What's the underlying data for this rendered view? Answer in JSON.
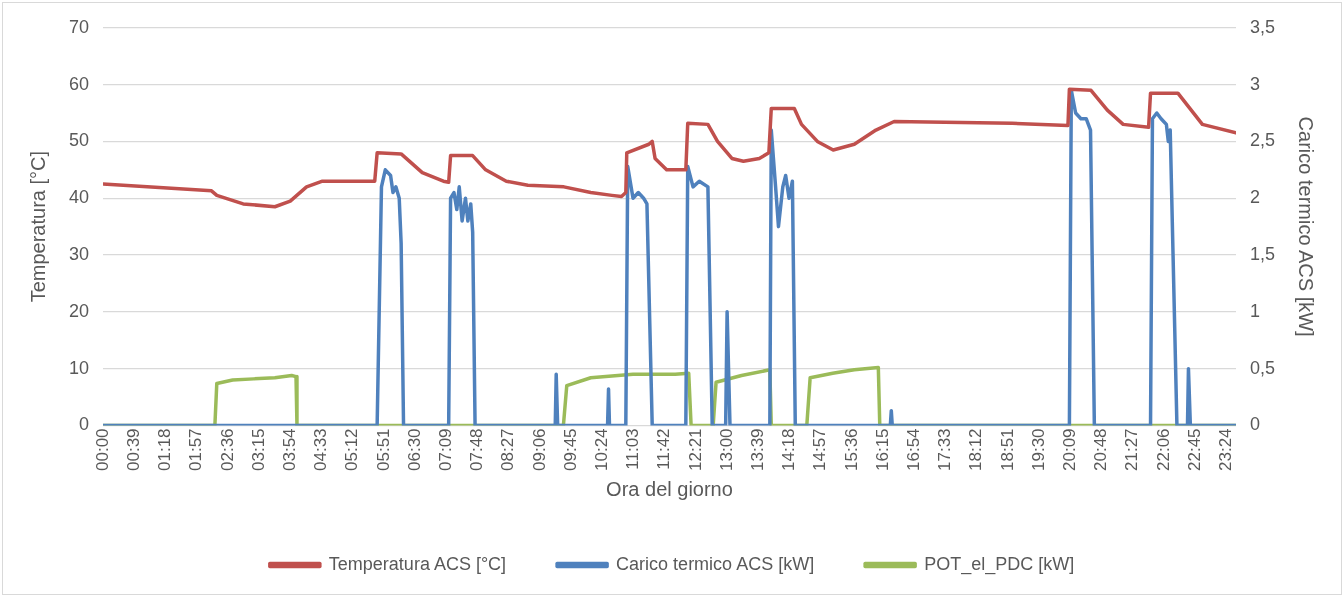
{
  "chart_data": {
    "type": "line",
    "xlabel": "Ora del giorno",
    "ylabel": "Temperatura [°C]",
    "y2label": "Carico termico ACS [kW]",
    "xlim": [
      0,
      23.6
    ],
    "xticks": [
      {
        "value": 0,
        "label": "00:00"
      },
      {
        "value": 0.65,
        "label": "00:39"
      },
      {
        "value": 1.3,
        "label": "01:18"
      },
      {
        "value": 1.95,
        "label": "01:57"
      },
      {
        "value": 2.6,
        "label": "02:36"
      },
      {
        "value": 3.25,
        "label": "03:15"
      },
      {
        "value": 3.9,
        "label": "03:54"
      },
      {
        "value": 4.55,
        "label": "04:33"
      },
      {
        "value": 5.2,
        "label": "05:12"
      },
      {
        "value": 5.85,
        "label": "05:51"
      },
      {
        "value": 6.5,
        "label": "06:30"
      },
      {
        "value": 7.15,
        "label": "07:09"
      },
      {
        "value": 7.8,
        "label": "07:48"
      },
      {
        "value": 8.45,
        "label": "08:27"
      },
      {
        "value": 9.1,
        "label": "09:06"
      },
      {
        "value": 9.75,
        "label": "09:45"
      },
      {
        "value": 10.4,
        "label": "10:24"
      },
      {
        "value": 11.05,
        "label": "11:03"
      },
      {
        "value": 11.7,
        "label": "11:42"
      },
      {
        "value": 12.35,
        "label": "12:21"
      },
      {
        "value": 13,
        "label": "13:00"
      },
      {
        "value": 13.65,
        "label": "13:39"
      },
      {
        "value": 14.3,
        "label": "14:18"
      },
      {
        "value": 14.95,
        "label": "14:57"
      },
      {
        "value": 15.6,
        "label": "15:36"
      },
      {
        "value": 16.25,
        "label": "16:15"
      },
      {
        "value": 16.9,
        "label": "16:54"
      },
      {
        "value": 17.55,
        "label": "17:33"
      },
      {
        "value": 18.2,
        "label": "18:12"
      },
      {
        "value": 18.85,
        "label": "18:51"
      },
      {
        "value": 19.5,
        "label": "19:30"
      },
      {
        "value": 20.15,
        "label": "20:09"
      },
      {
        "value": 20.8,
        "label": "20:48"
      },
      {
        "value": 21.45,
        "label": "21:27"
      },
      {
        "value": 22.1,
        "label": "22:06"
      },
      {
        "value": 22.75,
        "label": "22:45"
      },
      {
        "value": 23.4,
        "label": "23:24"
      }
    ],
    "ylim": [
      0,
      70
    ],
    "yticks": [
      0,
      10,
      20,
      30,
      40,
      50,
      60,
      70
    ],
    "y2lim": [
      0,
      3.5
    ],
    "y2ticks": [
      0,
      {
        "value": 0.5,
        "label": "0,5"
      },
      1,
      {
        "value": 1.5,
        "label": "1,5"
      },
      2,
      {
        "value": 2.5,
        "label": "2,5"
      },
      3,
      {
        "value": 3.5,
        "label": "3,5"
      }
    ],
    "grid": "y",
    "legend": "bottom",
    "marker": "none",
    "line_style": "solid",
    "series": [
      {
        "name": "Temperatura ACS [°C]",
        "color": "#c0504d",
        "x": [
          0,
          2.26,
          2.37,
          2.92,
          3.58,
          3.9,
          4.24,
          4.57,
          5.66,
          5.71,
          6.21,
          6.65,
          7.09,
          7.2,
          7.24,
          7.7,
          7.97,
          8.4,
          8.85,
          9.6,
          10.16,
          10.6,
          10.8,
          10.89,
          10.91,
          11.37,
          11.44,
          11.5,
          11.74,
          12.14,
          12.18,
          12.6,
          12.8,
          13.1,
          13.34,
          13.67,
          13.87,
          13.92,
          14.4,
          14.55,
          14.88,
          15.21,
          15.65,
          16.1,
          16.48,
          18.94,
          20.1,
          20.13,
          20.58,
          20.92,
          21.25,
          21.78,
          21.82,
          22.39,
          22.9,
          23.6
        ],
        "values": [
          42.5,
          41.3,
          40.5,
          39,
          38.5,
          39.5,
          42,
          43,
          43,
          48,
          47.8,
          44.5,
          43,
          42.8,
          47.5,
          47.5,
          45,
          43,
          42.3,
          42,
          41,
          40.5,
          40.3,
          41,
          48,
          49.5,
          50,
          47,
          45,
          45,
          53.2,
          53,
          50,
          47,
          46.5,
          47,
          48,
          55.8,
          55.8,
          53,
          50,
          48.5,
          49.5,
          52,
          53.5,
          53.2,
          52.8,
          59.2,
          59,
          55.5,
          53,
          52.5,
          58.5,
          58.5,
          53,
          51.5
        ]
      },
      {
        "name": "Carico termico ACS [kW]",
        "color": "#4f81bd",
        "axis": "y2",
        "x": [
          0,
          5.71,
          5.8,
          5.88,
          5.99,
          6.04,
          6.1,
          6.17,
          6.21,
          6.26,
          7.2,
          7.24,
          7.31,
          7.37,
          7.42,
          7.48,
          7.55,
          7.6,
          7.66,
          7.7,
          7.75,
          9.42,
          9.44,
          9.47,
          10.51,
          10.53,
          10.55,
          10.89,
          10.93,
          11.04,
          11.15,
          11.26,
          11.33,
          11.44,
          12.14,
          12.18,
          12.29,
          12.42,
          12.6,
          12.69,
          12.97,
          13.0,
          13.06,
          13.89,
          13.92,
          14.01,
          14.07,
          14.16,
          14.22,
          14.29,
          14.36,
          14.42,
          16.4,
          16.42,
          16.44,
          20.13,
          20.17,
          20.26,
          20.37,
          20.48,
          20.57,
          20.65,
          21.82,
          21.86,
          21.95,
          22.04,
          22.15,
          22.19,
          22.23,
          22.37,
          22.59,
          22.61,
          22.65,
          23.6
        ],
        "values": [
          0,
          0,
          2.1,
          2.25,
          2.2,
          2.05,
          2.1,
          2.0,
          1.6,
          0,
          0,
          2.0,
          2.05,
          1.9,
          2.1,
          1.8,
          2.0,
          1.8,
          1.95,
          1.7,
          0,
          0,
          0.45,
          0,
          0,
          0.32,
          0,
          0,
          2.28,
          2.0,
          2.05,
          2.0,
          1.95,
          0,
          0,
          2.28,
          2.1,
          2.15,
          2.1,
          0,
          0,
          1.0,
          0,
          0,
          2.6,
          2.1,
          1.75,
          2.1,
          2.2,
          2.0,
          2.15,
          0,
          0,
          0.13,
          0,
          0,
          2.95,
          2.75,
          2.7,
          2.7,
          2.6,
          0,
          0,
          2.7,
          2.75,
          2.7,
          2.65,
          2.5,
          2.6,
          0,
          0,
          0.5,
          0,
          0
        ]
      },
      {
        "name": "POT_el_PDC [kW]",
        "color": "#9bbb59",
        "axis": "y2",
        "x": [
          0,
          2.33,
          2.37,
          2.7,
          3.14,
          3.58,
          3.93,
          4.02,
          4.04,
          9.59,
          9.66,
          10.16,
          11.04,
          11.92,
          12.2,
          12.25,
          12.71,
          12.77,
          13.3,
          13.89,
          13.92,
          14.66,
          14.73,
          15.2,
          15.65,
          16.15,
          16.18,
          23.6
        ],
        "values": [
          0,
          0,
          0.37,
          0.4,
          0.41,
          0.42,
          0.44,
          0.43,
          0,
          0,
          0.35,
          0.42,
          0.45,
          0.45,
          0.46,
          0,
          0,
          0.38,
          0.44,
          0.49,
          0,
          0,
          0.42,
          0.46,
          0.49,
          0.51,
          0,
          0
        ]
      }
    ]
  }
}
